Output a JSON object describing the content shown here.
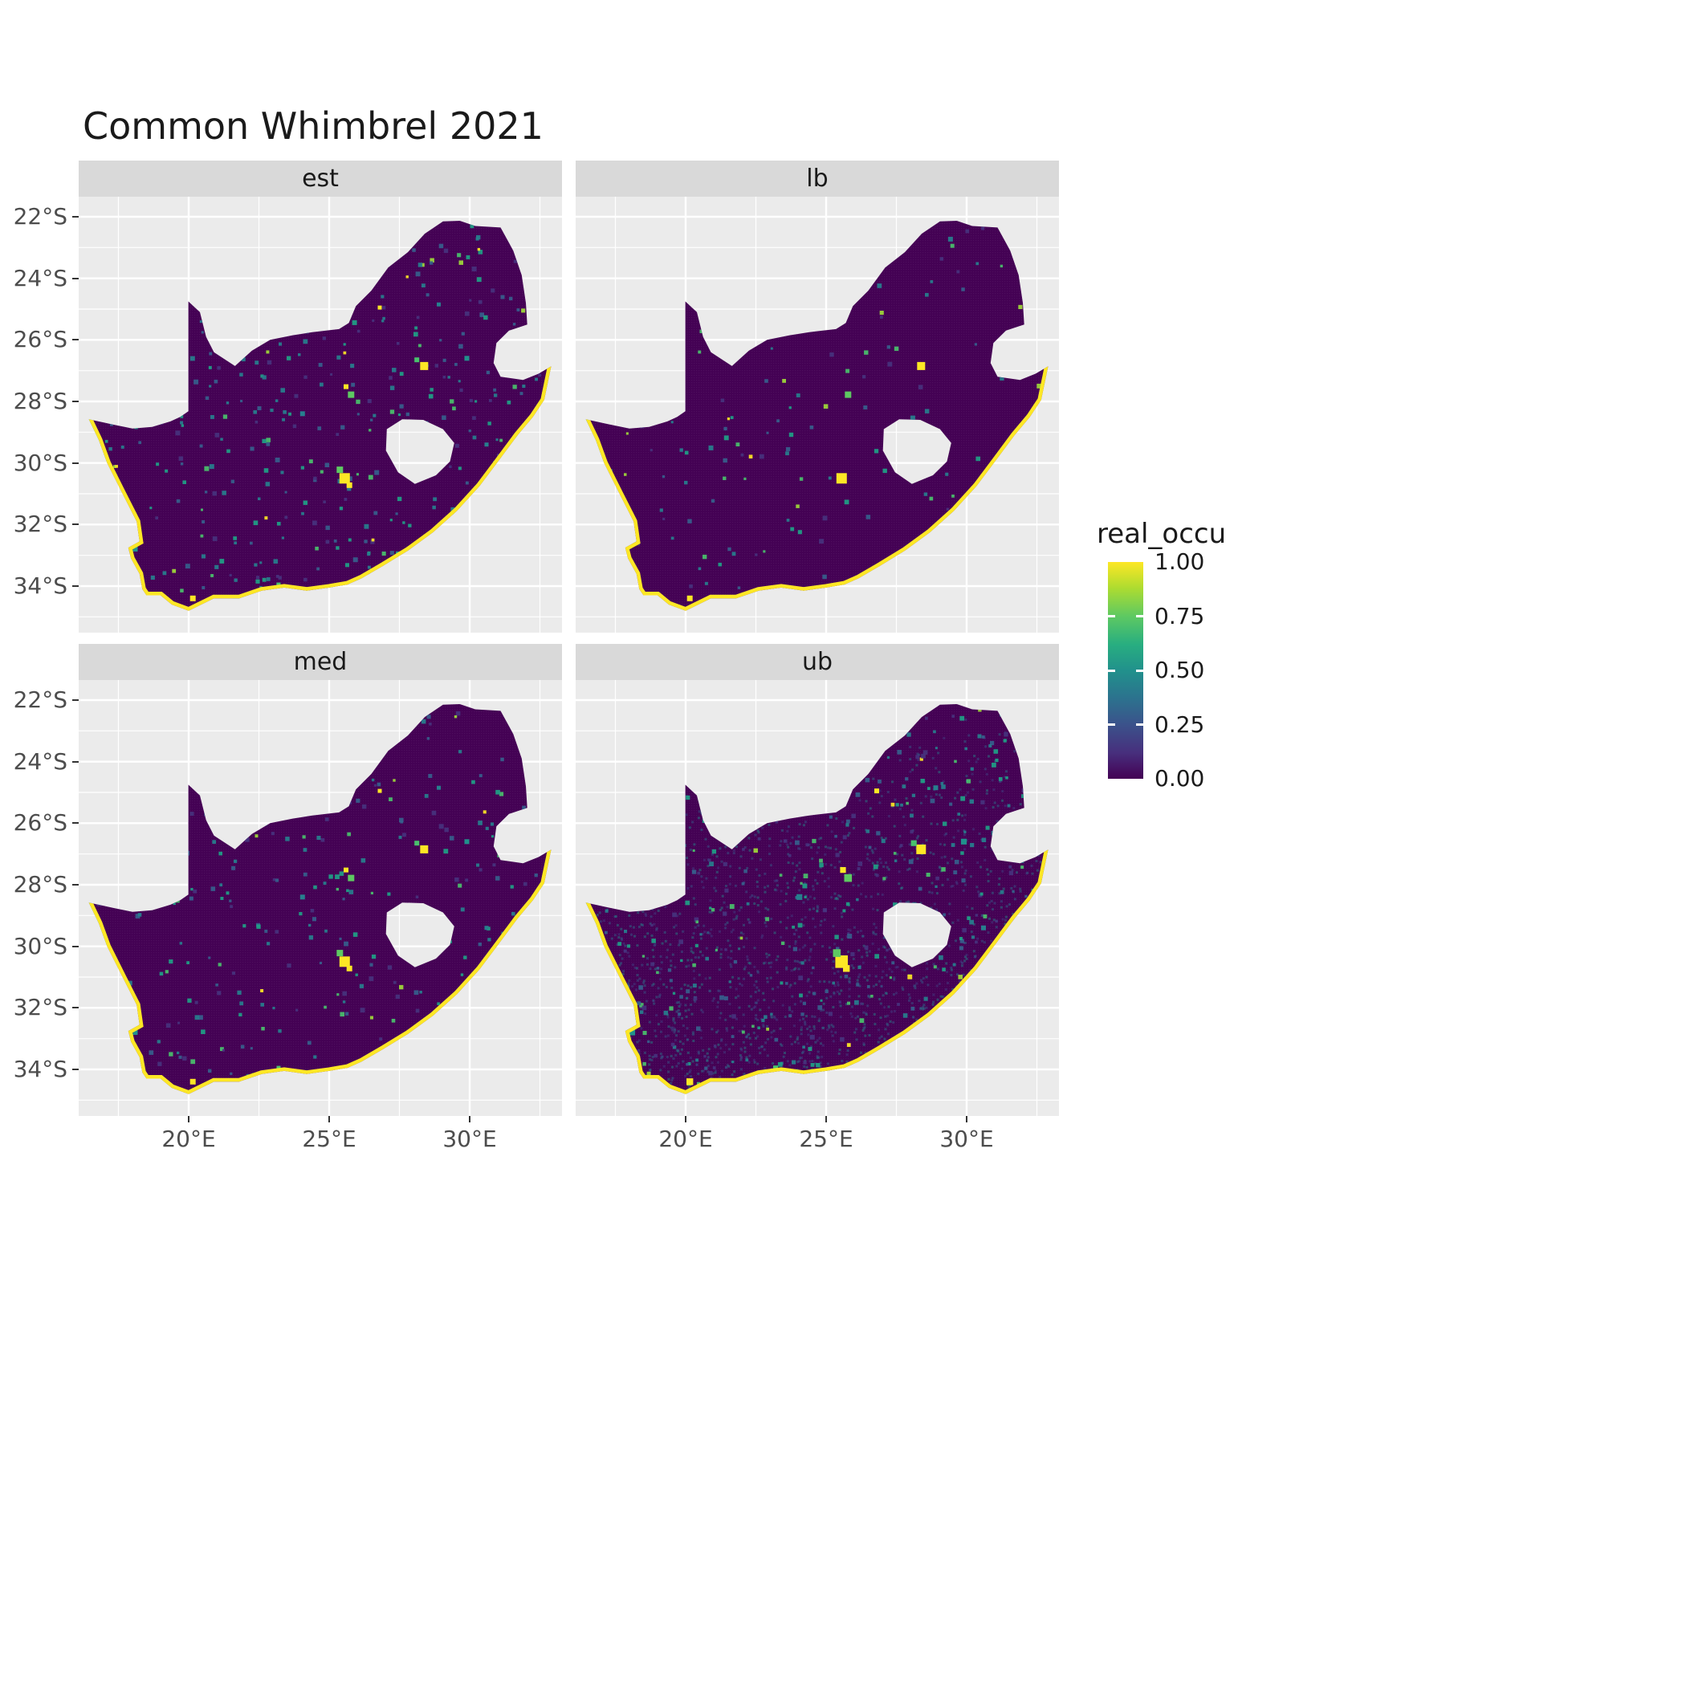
{
  "chart_data": {
    "type": "heatmap",
    "title": "Common Whimbrel 2021",
    "facets": [
      {
        "label": "est"
      },
      {
        "label": "lb"
      },
      {
        "label": "med"
      },
      {
        "label": "ub"
      }
    ],
    "legend": {
      "title": "real_occu",
      "ticks": [
        {
          "label": "1.00",
          "value": 1.0
        },
        {
          "label": "0.75",
          "value": 0.75
        },
        {
          "label": "0.50",
          "value": 0.5
        },
        {
          "label": "0.25",
          "value": 0.25
        },
        {
          "label": "0.00",
          "value": 0.0
        }
      ]
    },
    "x_axis": {
      "ticks": [
        {
          "label": "20°E",
          "lon": 20
        },
        {
          "label": "25°E",
          "lon": 25
        },
        {
          "label": "30°E",
          "lon": 30
        }
      ],
      "minor": [
        17.5,
        22.5,
        27.5,
        32.5
      ]
    },
    "y_axis": {
      "ticks": [
        {
          "label": "22°S",
          "lat": -22
        },
        {
          "label": "24°S",
          "lat": -24
        },
        {
          "label": "26°S",
          "lat": -26
        },
        {
          "label": "28°S",
          "lat": -28
        },
        {
          "label": "30°S",
          "lat": -30
        },
        {
          "label": "32°S",
          "lat": -32
        },
        {
          "label": "34°S",
          "lat": -34
        }
      ],
      "minor": [
        -23,
        -25,
        -27,
        -29,
        -31,
        -33,
        -35
      ]
    },
    "value_range": [
      0,
      1
    ],
    "colorscale": {
      "name": "viridis",
      "stops": [
        {
          "v": 0.0,
          "color": "#440154"
        },
        {
          "v": 0.25,
          "color": "#3B528B"
        },
        {
          "v": 0.5,
          "color": "#21918C"
        },
        {
          "v": 0.75,
          "color": "#5EC962"
        },
        {
          "v": 1.0,
          "color": "#FDE725"
        }
      ]
    },
    "map": {
      "region": "South Africa",
      "coast_start_index": 37,
      "outline": [
        [
          16.45,
          -28.58
        ],
        [
          17.3,
          -28.75
        ],
        [
          18.0,
          -28.88
        ],
        [
          18.7,
          -28.83
        ],
        [
          19.35,
          -28.65
        ],
        [
          19.7,
          -28.5
        ],
        [
          19.99,
          -28.32
        ],
        [
          19.99,
          -24.75
        ],
        [
          20.4,
          -25.1
        ],
        [
          20.62,
          -25.9
        ],
        [
          20.9,
          -26.4
        ],
        [
          21.65,
          -26.85
        ],
        [
          22.25,
          -26.35
        ],
        [
          22.9,
          -26.0
        ],
        [
          23.7,
          -25.85
        ],
        [
          24.4,
          -25.75
        ],
        [
          25.35,
          -25.65
        ],
        [
          25.7,
          -25.45
        ],
        [
          25.95,
          -24.9
        ],
        [
          26.5,
          -24.4
        ],
        [
          27.1,
          -23.65
        ],
        [
          27.8,
          -23.15
        ],
        [
          28.4,
          -22.55
        ],
        [
          29.05,
          -22.15
        ],
        [
          29.65,
          -22.13
        ],
        [
          30.2,
          -22.3
        ],
        [
          31.1,
          -22.35
        ],
        [
          31.55,
          -23.1
        ],
        [
          31.85,
          -23.9
        ],
        [
          32.0,
          -24.8
        ],
        [
          32.05,
          -25.5
        ],
        [
          31.4,
          -25.7
        ],
        [
          30.95,
          -26.1
        ],
        [
          30.85,
          -26.75
        ],
        [
          31.1,
          -27.2
        ],
        [
          31.9,
          -27.3
        ],
        [
          32.45,
          -27.1
        ],
        [
          32.9,
          -26.86
        ],
        [
          32.65,
          -27.95
        ],
        [
          32.25,
          -28.5
        ],
        [
          31.7,
          -29.1
        ],
        [
          31.05,
          -29.9
        ],
        [
          30.35,
          -30.75
        ],
        [
          29.55,
          -31.55
        ],
        [
          28.7,
          -32.25
        ],
        [
          27.8,
          -32.85
        ],
        [
          26.9,
          -33.35
        ],
        [
          26.15,
          -33.75
        ],
        [
          25.65,
          -33.95
        ],
        [
          25.0,
          -34.05
        ],
        [
          24.2,
          -34.15
        ],
        [
          23.4,
          -34.05
        ],
        [
          22.6,
          -34.15
        ],
        [
          21.8,
          -34.4
        ],
        [
          20.9,
          -34.4
        ],
        [
          20.0,
          -34.8
        ],
        [
          19.4,
          -34.6
        ],
        [
          19.0,
          -34.3
        ],
        [
          18.5,
          -34.3
        ],
        [
          18.35,
          -34.1
        ],
        [
          18.25,
          -33.6
        ],
        [
          17.95,
          -33.1
        ],
        [
          17.85,
          -32.75
        ],
        [
          18.25,
          -32.55
        ],
        [
          18.15,
          -31.9
        ],
        [
          17.65,
          -31.0
        ],
        [
          17.1,
          -30.0
        ],
        [
          16.8,
          -29.25
        ]
      ],
      "lesotho_hole": [
        [
          27.05,
          -28.9
        ],
        [
          27.6,
          -28.58
        ],
        [
          28.35,
          -28.6
        ],
        [
          29.05,
          -28.9
        ],
        [
          29.45,
          -29.35
        ],
        [
          29.3,
          -29.95
        ],
        [
          28.8,
          -30.4
        ],
        [
          28.05,
          -30.68
        ],
        [
          27.45,
          -30.3
        ],
        [
          27.02,
          -29.6
        ]
      ]
    },
    "hotspots": [
      [
        25.55,
        -30.5,
        "#fde725",
        13
      ],
      [
        28.38,
        -26.85,
        "#fde725",
        10
      ],
      [
        25.78,
        -27.78,
        "#5ec962",
        8
      ],
      [
        20.15,
        -34.4,
        "#fde725",
        7
      ],
      [
        25.38,
        -30.22,
        "#5ec962",
        8
      ],
      [
        25.72,
        -30.72,
        "#fde725",
        7
      ],
      [
        28.12,
        -26.65,
        "#4ac16d",
        6
      ],
      [
        25.6,
        -27.52,
        "#fde725",
        6
      ],
      [
        24.05,
        -28.4,
        "#277f8e",
        6
      ],
      [
        29.9,
        -26.6,
        "#21918c",
        6
      ],
      [
        28.9,
        -24.85,
        "#277f8e",
        5
      ],
      [
        26.8,
        -24.95,
        "#fde725",
        5
      ],
      [
        18.1,
        -32.8,
        "#21918c",
        6
      ],
      [
        23.2,
        -33.95,
        "#4ac16d",
        5
      ],
      [
        30.6,
        -29.4,
        "#277f8e",
        5
      ]
    ]
  },
  "style": {
    "panel_bg": "#EBEBEB",
    "strip_bg": "#D9D9D9",
    "grid_color": "#FFFFFF",
    "axis_text": "#4D4D4D",
    "title_color": "#1A1A1A",
    "map_fill": "#440154",
    "coast_color": "#FDE725"
  }
}
